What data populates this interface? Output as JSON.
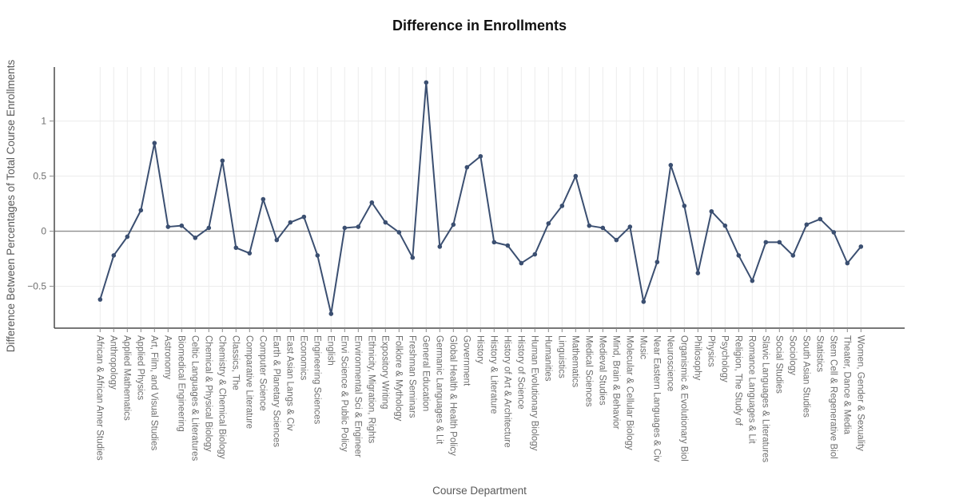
{
  "chart_data": {
    "type": "line",
    "title": "Difference in Enrollments",
    "xlabel": "Course Department",
    "ylabel": "Difference Between Percentages of Total Course Enrollments",
    "legend_position": "none",
    "grid": true,
    "ylim": [
      -0.88,
      1.49
    ],
    "yticks": [
      1,
      0.5,
      0,
      -0.5
    ],
    "ytick_labels": [
      "1",
      "0.5",
      "0",
      "−0.5"
    ],
    "categories": [
      "African & African Amer Studies",
      "Anthropology",
      "Applied Mathematics",
      "Applied Physics",
      "Art, Film, and Visual Studies",
      "Astronomy",
      "Biomedical Engineering",
      "Celtic Languages & Literatures",
      "Chemical & Physical Biology",
      "Chemistry & Chemical Biology",
      "Classics, The",
      "Comparative Literature",
      "Computer Science",
      "Earth & Planetary Sciences",
      "East Asian Langs & Civ",
      "Economics",
      "Engineering Sciences",
      "English",
      "Envi Science & Public Policy",
      "Environmental Sci & Engineer",
      "Ethnicity, Migration, Rights",
      "Expository Writing",
      "Folklore & Mythology",
      "Freshman Seminars",
      "General Education",
      "Germanic Languages & Lit",
      "Global Health & Health Policy",
      "Government",
      "History",
      "History & Literature",
      "History of Art & Architecture",
      "History of Science",
      "Human Evolutionary Biology",
      "Humanities",
      "Linguistics",
      "Mathematics",
      "Medical Sciences",
      "Medieval Studies",
      "Mind, Brain & Behavior",
      "Molecular & Cellular Biology",
      "Music",
      "Near Eastern Languages & Civ",
      "Neuroscience",
      "Organismic & Evolutionary Biol",
      "Philosophy",
      "Physics",
      "Psychology",
      "Religion, The Study of",
      "Romance Languages & Lit",
      "Slavic Languages & Literatures",
      "Social Studies",
      "Sociology",
      "South Asian Studies",
      "Statistics",
      "Stem Cell & Regenerative Biol",
      "Theater, Dance & Media",
      "Women, Gender & Sexuality"
    ],
    "values": [
      -0.62,
      -0.22,
      -0.05,
      0.19,
      0.8,
      0.04,
      0.05,
      -0.06,
      0.03,
      0.64,
      -0.15,
      -0.2,
      0.29,
      -0.08,
      0.08,
      0.13,
      -0.22,
      -0.75,
      0.03,
      0.04,
      0.26,
      0.08,
      -0.01,
      -0.24,
      1.35,
      -0.14,
      0.06,
      0.58,
      0.68,
      -0.1,
      -0.13,
      -0.29,
      -0.21,
      0.07,
      0.23,
      0.5,
      0.05,
      0.03,
      -0.08,
      0.04,
      -0.64,
      -0.28,
      0.6,
      0.23,
      -0.38,
      0.18,
      0.05,
      -0.22,
      -0.45,
      -0.1,
      -0.1,
      -0.22,
      0.06,
      0.11,
      -0.01,
      -0.29,
      -0.14
    ],
    "line_color": "#3b4f71",
    "marker_color": "#3b4f71",
    "zero_line_color": "#8e8e8e",
    "grid_color": "#ececec",
    "axis_color": "#4a4a4a",
    "tick_color": "#8a8a8a",
    "tick_label_color": "#6e6e6e",
    "axis_title_color": "#595959",
    "title_color": "#111111"
  }
}
